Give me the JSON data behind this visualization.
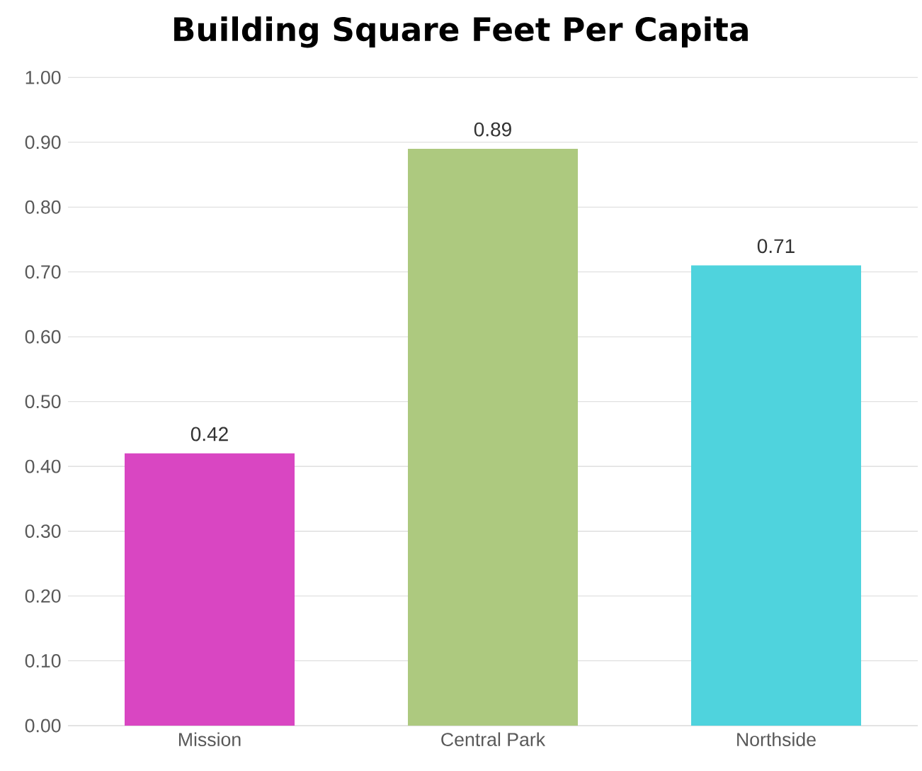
{
  "chart_data": {
    "type": "bar",
    "title": "Building Square Feet Per Capita",
    "categories": [
      "Mission",
      "Central Park",
      "Northside"
    ],
    "values": [
      0.42,
      0.89,
      0.71
    ],
    "value_labels": [
      "0.42",
      "0.89",
      "0.71"
    ],
    "colors": [
      "#d946c2",
      "#adc97f",
      "#4fd3dd"
    ],
    "ylim": [
      0,
      1
    ],
    "yticks": [
      {
        "value": 0,
        "label": "0.00"
      },
      {
        "value": 0.1,
        "label": "0.10"
      },
      {
        "value": 0.2,
        "label": "0.20"
      },
      {
        "value": 0.3,
        "label": "0.30"
      },
      {
        "value": 0.4,
        "label": "0.40"
      },
      {
        "value": 0.5,
        "label": "0.50"
      },
      {
        "value": 0.6,
        "label": "0.60"
      },
      {
        "value": 0.7,
        "label": "0.70"
      },
      {
        "value": 0.8,
        "label": "0.80"
      },
      {
        "value": 0.9,
        "label": "0.90"
      },
      {
        "value": 1,
        "label": "1.00"
      }
    ],
    "grid": "y"
  }
}
